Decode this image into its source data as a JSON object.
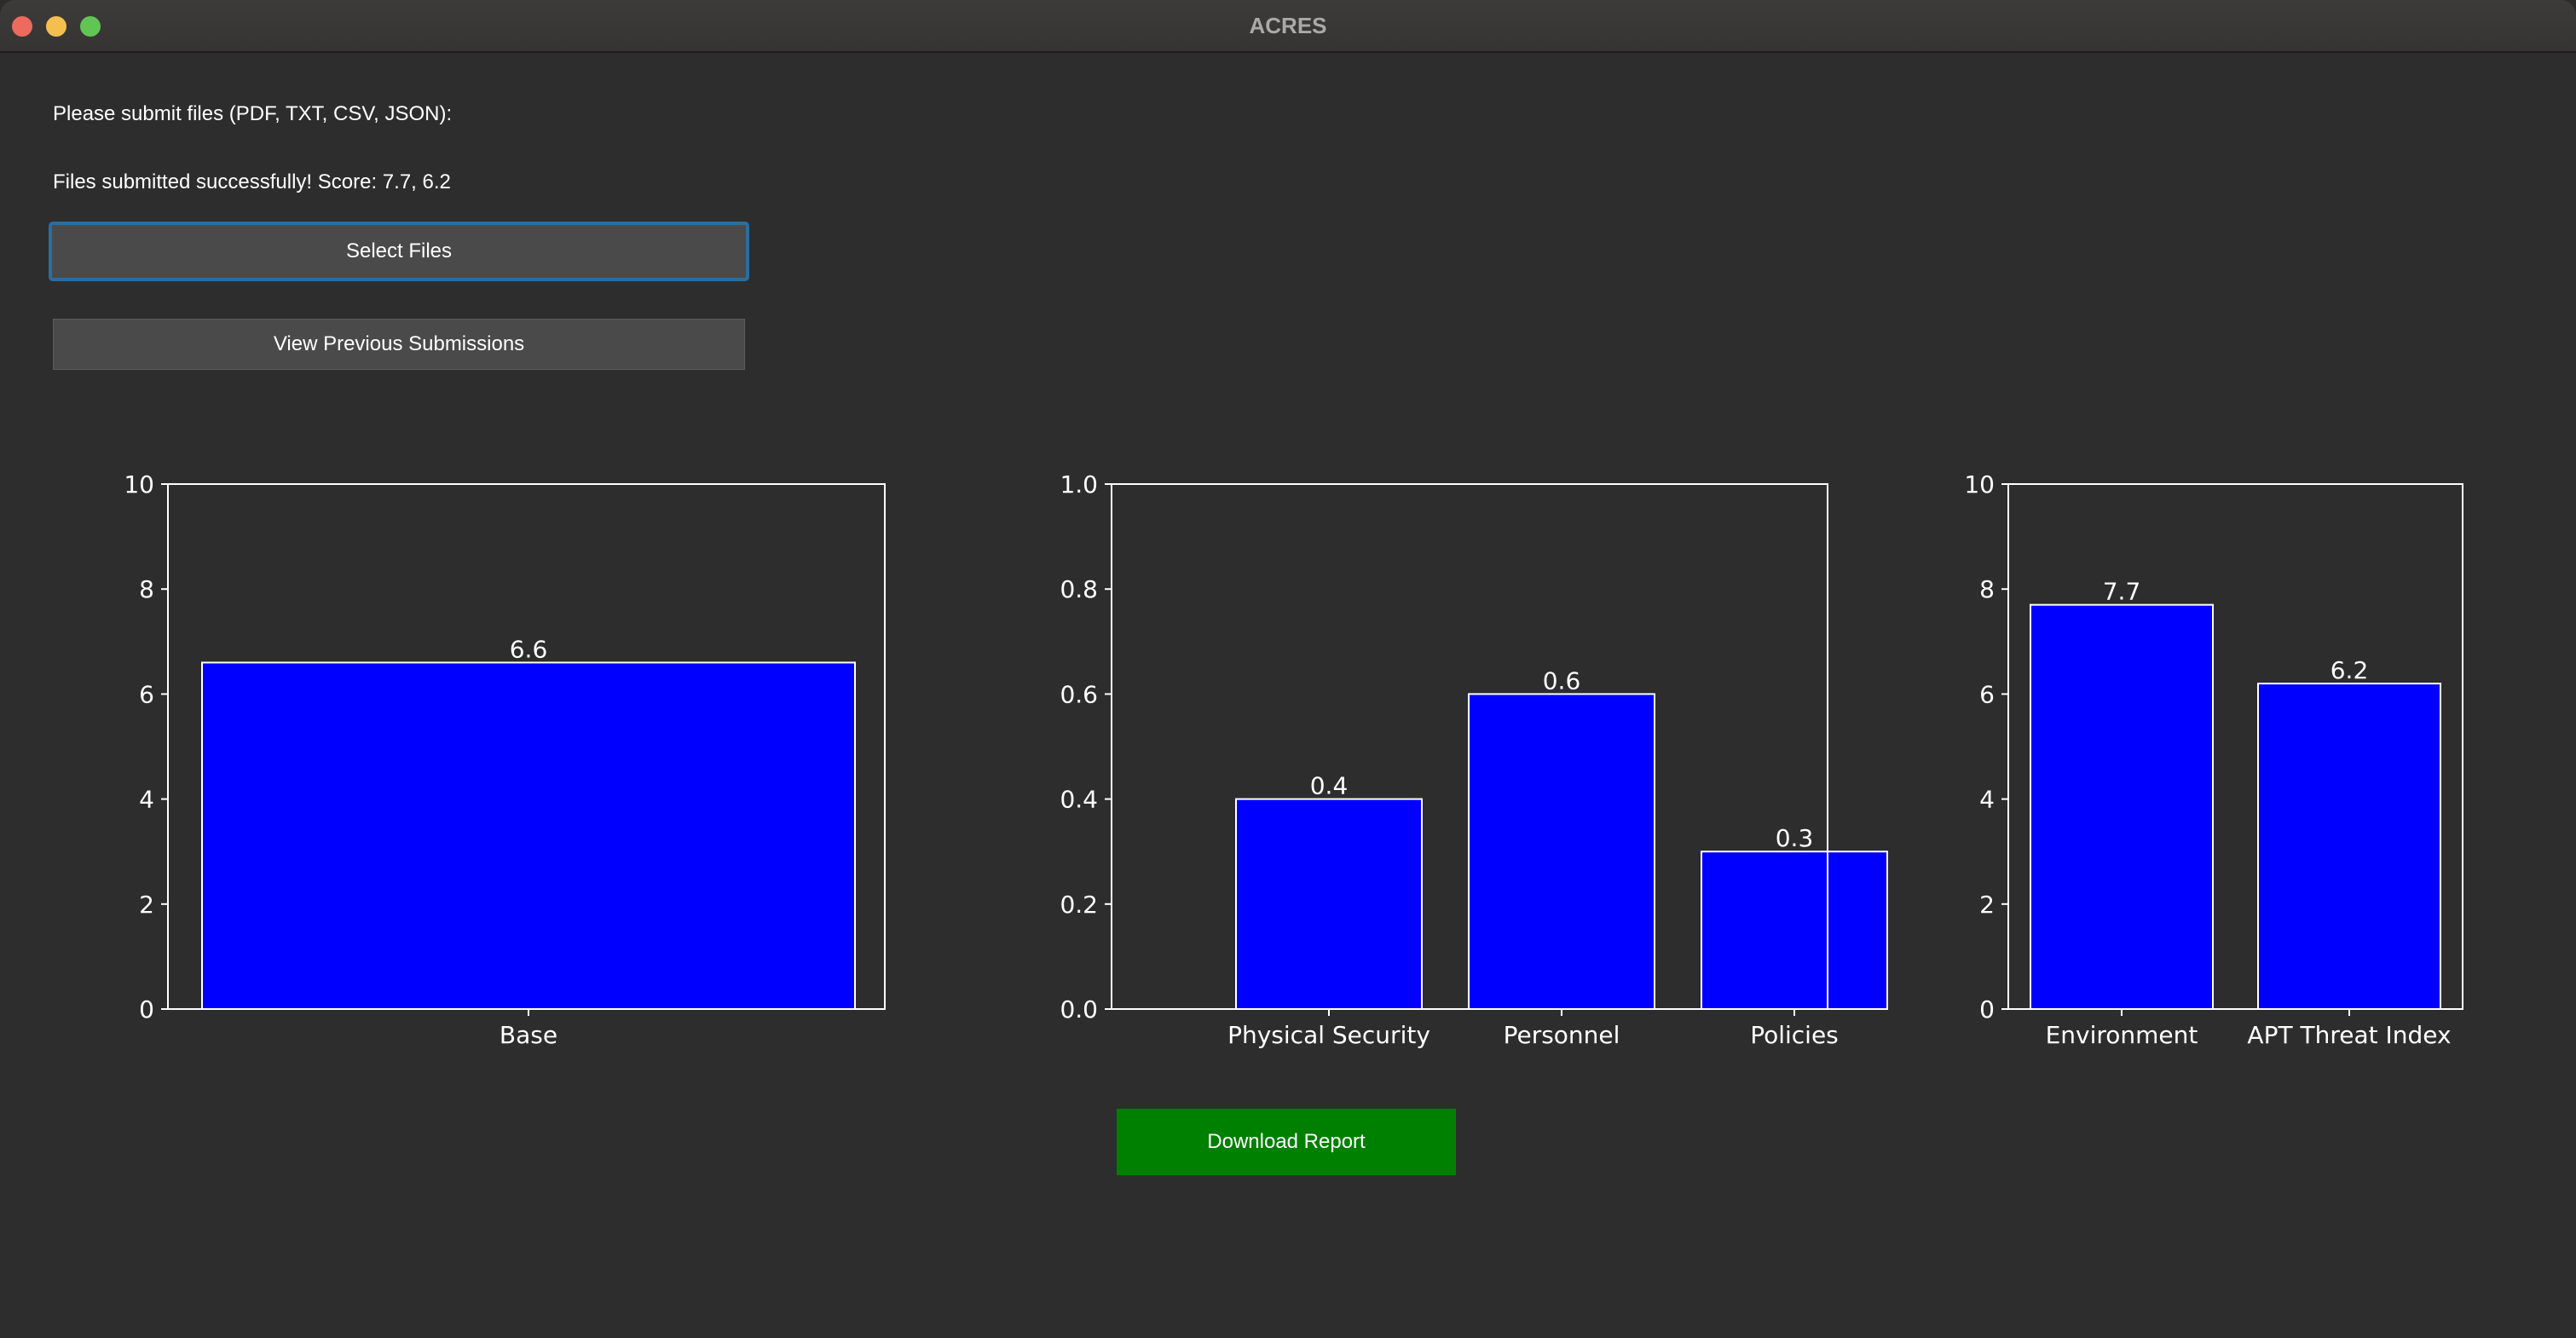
{
  "window": {
    "title": "ACRES"
  },
  "upload": {
    "prompt": "Please submit files (PDF, TXT, CSV, JSON):",
    "status": "Files submitted successfully! Score: 7.7, 6.2",
    "select_label": "Select Files",
    "view_label": "View Previous Submissions"
  },
  "download_label": "Download Report",
  "colors": {
    "bar": "#0000ff",
    "download": "#008000",
    "focus": "#2a6ea0"
  },
  "chart_data": [
    {
      "type": "bar",
      "categories": [
        "Base"
      ],
      "values": [
        6.6
      ],
      "ylim": [
        0,
        10
      ],
      "yticks": [
        "0",
        "2",
        "4",
        "6",
        "8",
        "10"
      ],
      "data_labels": [
        "6.6"
      ],
      "grid": false
    },
    {
      "type": "bar",
      "categories": [
        "Physical Security",
        "Personnel",
        "Policies"
      ],
      "values": [
        0.4,
        0.6,
        0.3
      ],
      "ylim": [
        0,
        1.0
      ],
      "yticks": [
        "0.0",
        "0.2",
        "0.4",
        "0.6",
        "0.8",
        "1.0"
      ],
      "data_labels": [
        "0.4",
        "0.6",
        "0.3"
      ],
      "grid": false
    },
    {
      "type": "bar",
      "categories": [
        "Environment",
        "APT Threat Index"
      ],
      "values": [
        7.7,
        6.2
      ],
      "ylim": [
        0,
        10
      ],
      "yticks": [
        "0",
        "2",
        "4",
        "6",
        "8",
        "10"
      ],
      "data_labels": [
        "7.7",
        "6.2"
      ],
      "grid": false
    }
  ]
}
